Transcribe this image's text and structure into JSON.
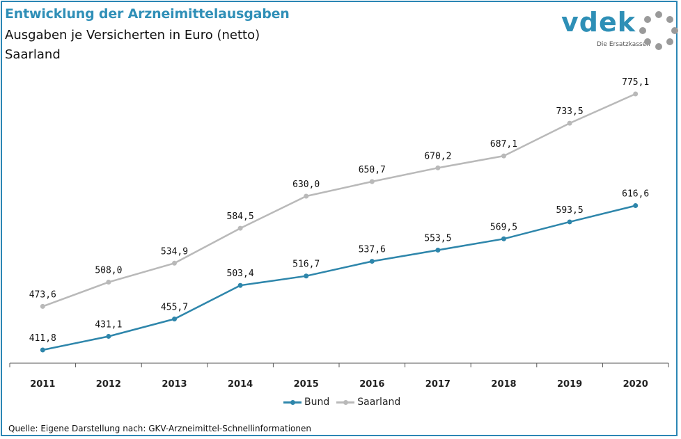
{
  "header": {
    "title": "Entwicklung der Arzneimittelausgaben",
    "subtitle": "Ausgaben je Versicherten in Euro (netto)",
    "region": "Saarland"
  },
  "logo": {
    "text": "vdek",
    "tagline": "Die Ersatzkassen",
    "color": "#2e8fb6",
    "icon": "ring-of-dots-icon"
  },
  "source": "Quelle: Eigene Darstellung nach: GKV-Arzneimittel-Schnellinformationen",
  "chart_data": {
    "type": "line",
    "categories": [
      "2011",
      "2012",
      "2013",
      "2014",
      "2015",
      "2016",
      "2017",
      "2018",
      "2019",
      "2020"
    ],
    "series": [
      {
        "name": "Bund",
        "color": "#2e86ab",
        "values": [
          411.8,
          431.1,
          455.7,
          503.4,
          516.7,
          537.6,
          553.5,
          569.5,
          593.5,
          616.6
        ],
        "labels": [
          "411,8",
          "431,1",
          "455,7",
          "503,4",
          "516,7",
          "537,6",
          "553,5",
          "569,5",
          "593,5",
          "616,6"
        ]
      },
      {
        "name": "Saarland",
        "color": "#b9b9b9",
        "values": [
          473.6,
          508.0,
          534.9,
          584.5,
          630.0,
          650.7,
          670.2,
          687.1,
          733.5,
          775.1
        ],
        "labels": [
          "473,6",
          "508,0",
          "534,9",
          "584,5",
          "630,0",
          "650,7",
          "670,2",
          "687,1",
          "733,5",
          "775,1"
        ]
      }
    ],
    "grid": false,
    "legend": "bottom-center"
  }
}
